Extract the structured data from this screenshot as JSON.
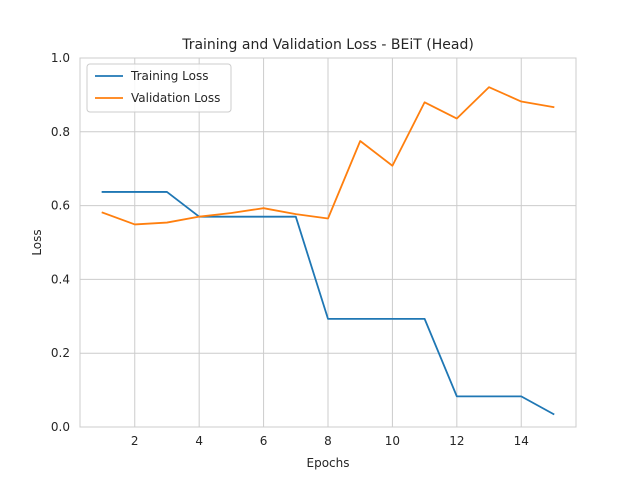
{
  "chart_data": {
    "type": "line",
    "title": "Training and Validation Loss - BEiT (Head)",
    "xlabel": "Epochs",
    "ylabel": "Loss",
    "xlim": [
      0.3,
      15.7
    ],
    "ylim": [
      0.0,
      1.0
    ],
    "xticks": [
      2,
      4,
      6,
      8,
      10,
      12,
      14
    ],
    "yticks": [
      0.0,
      0.2,
      0.4,
      0.6,
      0.8,
      1.0
    ],
    "grid": true,
    "legend_position": "top-left",
    "x": [
      1,
      2,
      3,
      4,
      5,
      6,
      7,
      8,
      9,
      10,
      11,
      12,
      13,
      14,
      15
    ],
    "series": [
      {
        "name": "Training Loss",
        "color": "#1f77b4",
        "values": [
          0.637,
          0.637,
          0.637,
          0.57,
          0.57,
          0.57,
          0.57,
          0.293,
          0.293,
          0.293,
          0.293,
          0.083,
          0.083,
          0.083,
          0.035
        ]
      },
      {
        "name": "Validation Loss",
        "color": "#ff7f0e",
        "values": [
          0.581,
          0.549,
          0.554,
          0.57,
          0.58,
          0.593,
          0.577,
          0.565,
          0.775,
          0.708,
          0.88,
          0.836,
          0.921,
          0.882,
          0.867
        ]
      }
    ]
  }
}
